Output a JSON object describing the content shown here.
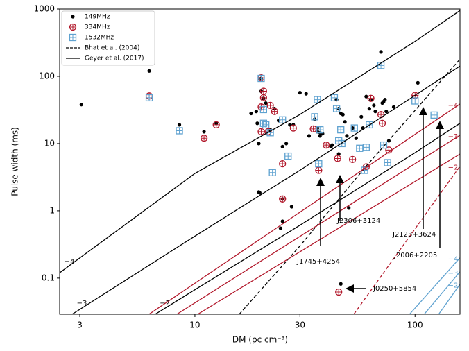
{
  "chart_data": {
    "type": "scatter",
    "xlabel": "DM (pc cm⁻³)",
    "ylabel": "Pulse width (ms)",
    "xscale": "log",
    "yscale": "log",
    "xlim": [
      2.43,
      160
    ],
    "ylim": [
      0.029,
      1000
    ],
    "xticks": [
      3,
      10,
      30,
      100
    ],
    "yticks": [
      0.1,
      1,
      10,
      100,
      1000
    ],
    "legend": "upper left",
    "series": [
      {
        "name": "149MHz",
        "color": "#000000",
        "marker": "dot",
        "x": [
          3.05,
          6.2,
          8.5,
          11,
          12.5,
          18,
          19,
          19.2,
          19.5,
          19.5,
          19.7,
          20,
          20,
          20.5,
          21,
          22,
          23,
          24,
          24.5,
          25,
          25,
          25,
          26,
          27,
          27.5,
          28,
          30,
          32,
          33,
          35,
          36,
          36,
          37,
          37,
          38,
          41.5,
          42,
          44,
          45,
          45,
          46,
          46,
          47,
          48,
          49,
          50,
          52,
          54,
          57,
          58,
          60,
          62,
          63,
          65,
          66,
          70,
          71,
          72,
          73,
          74,
          76,
          80,
          103
        ],
        "values": [
          38,
          120,
          19,
          15,
          20,
          28,
          30,
          20,
          10,
          1.9,
          1.85,
          93,
          60,
          47,
          40,
          16,
          33,
          22,
          0.55,
          0.7,
          9,
          1.5,
          10,
          19,
          1.15,
          19,
          57,
          55,
          13,
          23,
          17,
          15,
          14.5,
          13,
          14,
          9,
          9.5,
          45,
          33,
          7,
          28,
          0.082,
          27,
          21,
          13,
          1.1,
          17,
          12,
          25,
          17,
          50,
          33,
          45,
          37,
          30,
          230,
          40,
          42,
          45,
          30,
          11,
          35,
          80
        ]
      },
      {
        "name": "334MHz",
        "color": "#b2182b",
        "marker": "circle-plus",
        "x": [
          6.2,
          11,
          12.5,
          20,
          20.5,
          20.5,
          20,
          20,
          21.5,
          22,
          23,
          25,
          25,
          28,
          34.5,
          36.5,
          39.5,
          44.5,
          45,
          52,
          60,
          63,
          70,
          71,
          76,
          100
        ],
        "values": [
          51,
          12,
          19,
          95,
          60,
          48,
          35,
          15,
          15,
          37,
          30,
          5,
          1.5,
          17,
          16.5,
          4,
          9.5,
          6,
          0.062,
          5.8,
          4.5,
          47,
          27,
          20,
          8,
          52
        ]
      },
      {
        "name": "1532MHz",
        "color": "#5fa2d0",
        "marker": "square-plus",
        "x": [
          6.2,
          8.5,
          20,
          20.5,
          20.5,
          21,
          22,
          22.5,
          25,
          26.5,
          35,
          36,
          36.5,
          37,
          43,
          44,
          45,
          46,
          46.5,
          53,
          56,
          59,
          60,
          62,
          70,
          72,
          75,
          100,
          122
        ],
        "values": [
          48,
          15.5,
          93,
          32,
          20,
          19,
          14.5,
          3.7,
          22.5,
          6.5,
          25,
          45,
          5,
          16,
          48,
          33,
          11,
          16,
          10,
          17,
          8.5,
          4,
          8.8,
          19,
          145,
          9.5,
          5.2,
          43,
          26.5
        ]
      },
      {
        "name": "Bhat et al. (2004)",
        "type": "line",
        "color": "#000000",
        "dash": true,
        "lines": [
          {
            "color": "#000000",
            "x": [
              15.9,
              30,
              60,
              160
            ],
            "values": [
              0.029,
              0.3,
              4.6,
              180
            ]
          },
          {
            "color": "#b2182b",
            "label": "−2",
            "x": [
              52.7,
              160
            ],
            "values": [
              0.029,
              4.6
            ]
          }
        ]
      },
      {
        "name": "Geyer et al. (2017)",
        "type": "line",
        "color": "#000000",
        "dash": false,
        "lines": [
          {
            "color": "#000000",
            "label": "−4",
            "x": [
              2.43,
              10,
              30,
              100,
              160
            ],
            "values": [
              0.12,
              3.6,
              27,
              330,
              950
            ]
          },
          {
            "color": "#000000",
            "label": "−3",
            "x": [
              2.77,
              10,
              30,
              100,
              160
            ],
            "values": [
              0.029,
              0.42,
              4,
              52,
              142
            ]
          },
          {
            "color": "#000000",
            "label": "−2",
            "x": [
              6.6,
              10,
              30,
              100,
              160
            ],
            "values": [
              0.029,
              0.067,
              0.61,
              7.3,
              20
            ]
          },
          {
            "color": "#b2182b",
            "label": "−4",
            "x": [
              6.19,
              160
            ],
            "values": [
              0.029,
              38.7
            ]
          },
          {
            "color": "#b2182b",
            "label": "−3",
            "x": [
              8.28,
              160
            ],
            "values": [
              0.029,
              13.3
            ]
          },
          {
            "color": "#b2182b",
            "x": [
              10.3,
              160
            ],
            "values": [
              0.029,
              7
            ]
          },
          {
            "color": "#5fa2d0",
            "label": "−4",
            "x": [
              94.4,
              160
            ],
            "values": [
              0.029,
              0.2
            ]
          },
          {
            "color": "#5fa2d0",
            "label": "−3",
            "x": [
              110,
              160
            ],
            "values": [
              0.029,
              0.124
            ]
          },
          {
            "color": "#5fa2d0",
            "label": "−2",
            "x": [
              128,
              160
            ],
            "values": [
              0.029,
              0.081
            ]
          }
        ]
      }
    ],
    "annotations": [
      "J1745+4254",
      "J2306+3124",
      "J2123+3624",
      "J2006+2205",
      "J0250+5854"
    ]
  }
}
